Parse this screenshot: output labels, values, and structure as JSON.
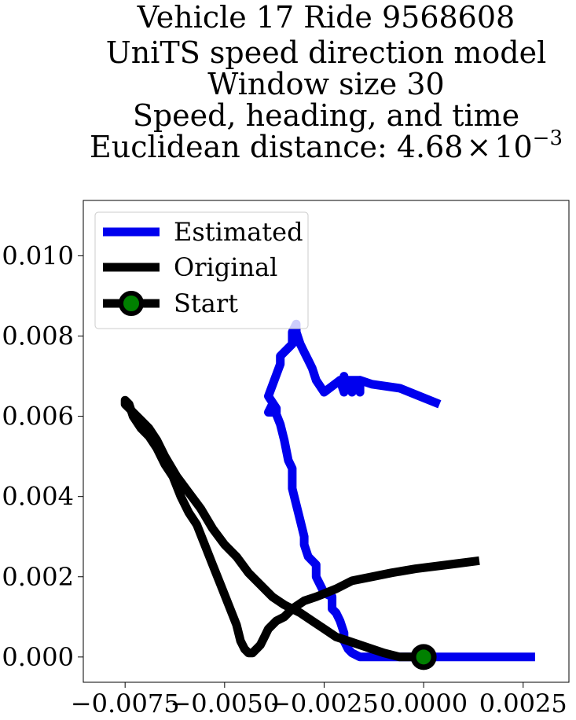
{
  "chart_data": {
    "type": "line",
    "title_lines": [
      "Vehicle 17 Ride 9568608",
      "UniTS speed direction model",
      "Window size 30",
      "Speed, heading, and time"
    ],
    "title_metric_prefix": "Euclidean distance: ",
    "title_metric_mantissa": "4.68",
    "title_metric_times": "×",
    "title_metric_base": "10",
    "title_metric_exponent": "−3",
    "xlim": [
      -0.00855,
      0.00365
    ],
    "ylim": [
      -0.00063,
      0.01138
    ],
    "x_ticks": [
      -0.0075,
      -0.005,
      -0.0025,
      0.0,
      0.0025
    ],
    "x_tick_labels": [
      "−0.0075",
      "−0.0050",
      "−0.0025",
      "0.0000",
      "0.0025"
    ],
    "y_ticks": [
      0.0,
      0.002,
      0.004,
      0.006,
      0.008,
      0.01
    ],
    "y_tick_labels": [
      "0.000",
      "0.002",
      "0.004",
      "0.006",
      "0.008",
      "0.010"
    ],
    "grid": false,
    "legend_position": "top-left",
    "series": [
      {
        "name": "Estimated",
        "color": "#0000ee",
        "x": [
          0.0004,
          -0.0006,
          -0.0013,
          -0.0016,
          -0.0018,
          -0.0019,
          -0.002,
          -0.002,
          -0.0021,
          -0.002,
          -0.002,
          -0.002,
          -0.0016,
          -0.0016,
          -0.0016,
          -0.0016,
          -0.0016,
          -0.0018,
          -0.0018,
          -0.0021,
          -0.0025,
          -0.0027,
          -0.0028,
          -0.0029,
          -0.003,
          -0.0031,
          -0.0032,
          -0.0032,
          -0.0033,
          -0.0033,
          -0.0036,
          -0.0036,
          -0.0039,
          -0.0037,
          -0.0037,
          -0.0039,
          -0.0038,
          -0.0036,
          -0.0035,
          -0.0034,
          -0.0033,
          -0.0033,
          -0.0032,
          -0.0031,
          -0.003,
          -0.003,
          -0.0029,
          -0.0027,
          -0.0027,
          -0.0026,
          -0.0025,
          -0.0023,
          -0.0023,
          -0.0022,
          -0.0021,
          -0.002,
          -0.002,
          -0.0019,
          -0.0018,
          -0.0016,
          -0.001,
          -0.0006,
          -0.0002,
          0.0002,
          0.0006,
          0.0008,
          0.001,
          0.0014,
          0.0018,
          0.0021,
          0.0024,
          0.0025,
          0.0023,
          0.0028
        ],
        "y": [
          0.0063,
          0.0067,
          0.0068,
          0.0069,
          0.0068,
          0.0069,
          0.0068,
          0.0066,
          0.0069,
          0.0069,
          0.007,
          0.0069,
          0.0069,
          0.0066,
          0.0069,
          0.0067,
          0.0068,
          0.0066,
          0.0067,
          0.0069,
          0.0066,
          0.0069,
          0.0072,
          0.0074,
          0.0076,
          0.0078,
          0.0081,
          0.0083,
          0.0081,
          0.0078,
          0.0075,
          0.0073,
          0.0065,
          0.0062,
          0.0061,
          0.0061,
          0.0063,
          0.0058,
          0.0054,
          0.0049,
          0.0047,
          0.0042,
          0.0038,
          0.0034,
          0.003,
          0.0028,
          0.0025,
          0.0023,
          0.002,
          0.0018,
          0.0016,
          0.0015,
          0.0012,
          0.0011,
          0.0009,
          0.0006,
          0.0004,
          0.0002,
          0.0001,
          0.0,
          0.0,
          0.0,
          0.0,
          0.0,
          0.0,
          0.0,
          0.0,
          0.0,
          0.0,
          0.0,
          0.0,
          0.0,
          0.0,
          0.0
        ]
      },
      {
        "name": "Original",
        "color": "#000000",
        "x": [
          0.0014,
          0.0006,
          -0.0002,
          -0.0008,
          -0.0013,
          -0.0018,
          -0.0022,
          -0.0027,
          -0.003,
          -0.0033,
          -0.0035,
          -0.0037,
          -0.0039,
          -0.004,
          -0.0041,
          -0.0042,
          -0.0043,
          -0.0044,
          -0.0045,
          -0.0046,
          -0.0047,
          -0.0049,
          -0.0051,
          -0.0053,
          -0.0055,
          -0.0057,
          -0.0059,
          -0.0061,
          -0.0063,
          -0.0065,
          -0.0067,
          -0.0069,
          -0.0071,
          -0.0073,
          -0.0074,
          -0.0075,
          -0.0075,
          -0.0074,
          -0.0073,
          -0.0071,
          -0.0069,
          -0.0067,
          -0.0065,
          -0.0062,
          -0.0059,
          -0.0056,
          -0.0053,
          -0.005,
          -0.0047,
          -0.0044,
          -0.0041,
          -0.0038,
          -0.0035,
          -0.0031,
          -0.0028,
          -0.0025,
          -0.0022,
          -0.0019,
          -0.0016,
          -0.0013,
          -0.001,
          -0.0006,
          -0.0003,
          0.0
        ],
        "y": [
          0.0024,
          0.0023,
          0.0022,
          0.0021,
          0.002,
          0.0019,
          0.0017,
          0.0015,
          0.0014,
          0.0012,
          0.001,
          0.0009,
          0.0007,
          0.0005,
          0.0003,
          0.0002,
          0.0001,
          0.0001,
          0.0002,
          0.0004,
          0.0008,
          0.0013,
          0.0018,
          0.0023,
          0.0028,
          0.0033,
          0.0036,
          0.004,
          0.0045,
          0.0048,
          0.0052,
          0.0055,
          0.0057,
          0.006,
          0.0063,
          0.0064,
          0.0063,
          0.0062,
          0.0061,
          0.0059,
          0.0057,
          0.0054,
          0.005,
          0.0045,
          0.0041,
          0.0037,
          0.0032,
          0.0028,
          0.0025,
          0.0021,
          0.0018,
          0.0015,
          0.0013,
          0.0011,
          0.0009,
          0.0007,
          0.0005,
          0.0004,
          0.0003,
          0.0002,
          0.0001,
          0.0,
          0.0,
          0.0
        ]
      }
    ],
    "start_point": {
      "name": "Start",
      "x": 0.0,
      "y": 0.0,
      "edge_color": "#000000",
      "face_color": "#008000"
    }
  }
}
